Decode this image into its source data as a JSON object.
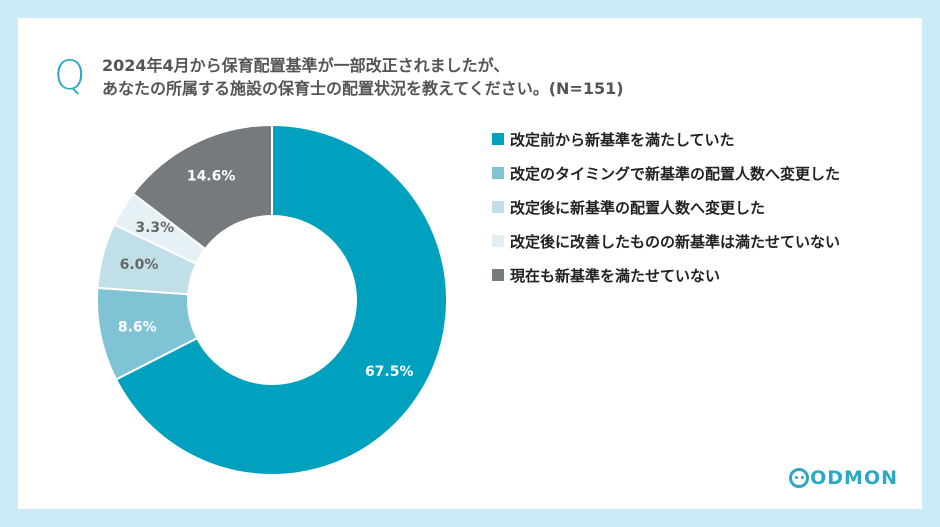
{
  "question": {
    "mark": "Q",
    "line1": "2024年4月から保育配置基準が一部改正されましたが、",
    "line2": "あなたの所属する施設の保育士の配置状況を教えてください。(N=151)"
  },
  "logo": {
    "text": "ODMON",
    "icon": "smiley-c-icon"
  },
  "chart_data": {
    "type": "pie",
    "donut": true,
    "legend_position": "right",
    "unit": "%",
    "slices": [
      {
        "label": "改定前から新基準を満たしていた",
        "value": 67.5,
        "data_label": "67.5%",
        "color": "#00a0bf",
        "label_color": "#ffffff"
      },
      {
        "label": "改定のタイミングで新基準の配置人数へ変更した",
        "value": 8.6,
        "data_label": "8.6%",
        "color": "#80c3d5",
        "label_color": "#ffffff"
      },
      {
        "label": "改定後に新基準の配置人数へ変更した",
        "value": 6.0,
        "data_label": "6.0%",
        "color": "#c0dfe8",
        "label_color": "#666666"
      },
      {
        "label": "改定後に改善したものの新基準は満たせていない",
        "value": 3.3,
        "data_label": "3.3%",
        "color": "#e6f1f5",
        "label_color": "#666666"
      },
      {
        "label": "現在も新基準を満たせていない",
        "value": 14.6,
        "data_label": "14.6%",
        "color": "#757a7d",
        "label_color": "#ffffff"
      }
    ]
  }
}
